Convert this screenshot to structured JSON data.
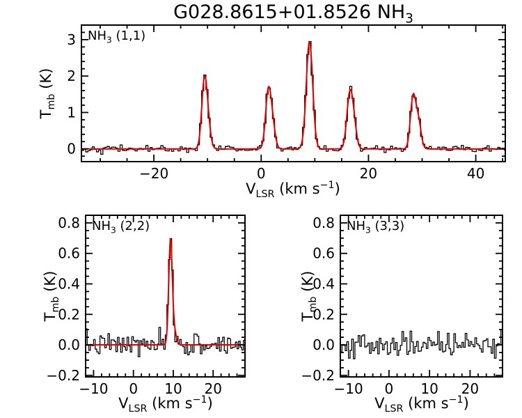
{
  "figure": {
    "title": {
      "prefix": "G028.8615+01.8526 NH",
      "sub": "3"
    }
  },
  "axis_labels": {
    "y": {
      "prefix": "T",
      "sub": "mb",
      "suffix": " (K)"
    },
    "x": {
      "prefix": "V",
      "sub": "LSR",
      "mid": " (km s",
      "sup": "−1",
      "suffix": ")"
    }
  },
  "colors": {
    "data": "#000000",
    "fit": "#e00000",
    "frame": "#000000",
    "background": "#ffffff"
  },
  "chart_data": [
    {
      "type": "line",
      "style": "histogram-spectrum",
      "label": {
        "prefix": "NH",
        "sub": "3",
        "suffix": " (1,1)"
      },
      "xlabel": "V_LSR (km s-1)",
      "ylabel": "T_mb (K)",
      "xlim": [
        -33.5,
        45.5
      ],
      "ylim": [
        -0.35,
        3.4
      ],
      "xticks": [
        -20,
        0,
        20,
        40
      ],
      "yticks": [
        0,
        1,
        2,
        3
      ],
      "x_decimals": 0,
      "y_decimals": 0,
      "x_minor_step": 5,
      "y_minor_step": 0.2,
      "channel_width": 0.4,
      "noise_sigma": 0.045,
      "seed": 42,
      "baseline": 0,
      "has_fit": true,
      "peaks": [
        {
          "center": -10.6,
          "height": 1.78,
          "sigma": 0.5
        },
        {
          "center": -9.9,
          "height": 0.55,
          "sigma": 0.5
        },
        {
          "center": 1.3,
          "height": 1.5,
          "sigma": 0.5
        },
        {
          "center": 2.1,
          "height": 0.65,
          "sigma": 0.5
        },
        {
          "center": 9.0,
          "height": 2.95,
          "sigma": 0.6
        },
        {
          "center": 16.5,
          "height": 1.45,
          "sigma": 0.55
        },
        {
          "center": 17.3,
          "height": 0.55,
          "sigma": 0.5
        },
        {
          "center": 28.3,
          "height": 1.4,
          "sigma": 0.5
        },
        {
          "center": 29.3,
          "height": 0.75,
          "sigma": 0.5
        }
      ]
    },
    {
      "type": "line",
      "style": "histogram-spectrum",
      "label": {
        "prefix": "NH",
        "sub": "3",
        "suffix": " (2,2)"
      },
      "xlabel": "V_LSR (km s-1)",
      "ylabel": "T_mb (K)",
      "xlim": [
        -12,
        28
      ],
      "ylim": [
        -0.21,
        0.85
      ],
      "xticks": [
        -10,
        0,
        10,
        20
      ],
      "yticks": [
        -0.2,
        0,
        0.2,
        0.4,
        0.6,
        0.8
      ],
      "x_decimals": 0,
      "y_decimals": 1,
      "x_minor_step": 2,
      "y_minor_step": 0.05,
      "channel_width": 0.4,
      "noise_sigma": 0.038,
      "seed": 7,
      "baseline": 0,
      "has_fit": true,
      "peaks": [
        {
          "center": 9.3,
          "height": 0.68,
          "sigma": 0.45
        },
        {
          "center": 10.3,
          "height": 0.08,
          "sigma": 0.5
        }
      ]
    },
    {
      "type": "line",
      "style": "histogram-spectrum",
      "label": {
        "prefix": "NH",
        "sub": "3",
        "suffix": " (3,3)"
      },
      "xlabel": "V_LSR (km s-1)",
      "ylabel": "T_mb (K)",
      "xlim": [
        -12,
        28
      ],
      "ylim": [
        -0.21,
        0.85
      ],
      "xticks": [
        -10,
        0,
        10,
        20
      ],
      "yticks": [
        -0.2,
        0,
        0.2,
        0.4,
        0.6,
        0.8
      ],
      "x_decimals": 0,
      "y_decimals": 1,
      "x_minor_step": 2,
      "y_minor_step": 0.05,
      "channel_width": 0.4,
      "noise_sigma": 0.042,
      "seed": 19,
      "baseline": 0,
      "has_fit": false,
      "peaks": []
    }
  ]
}
